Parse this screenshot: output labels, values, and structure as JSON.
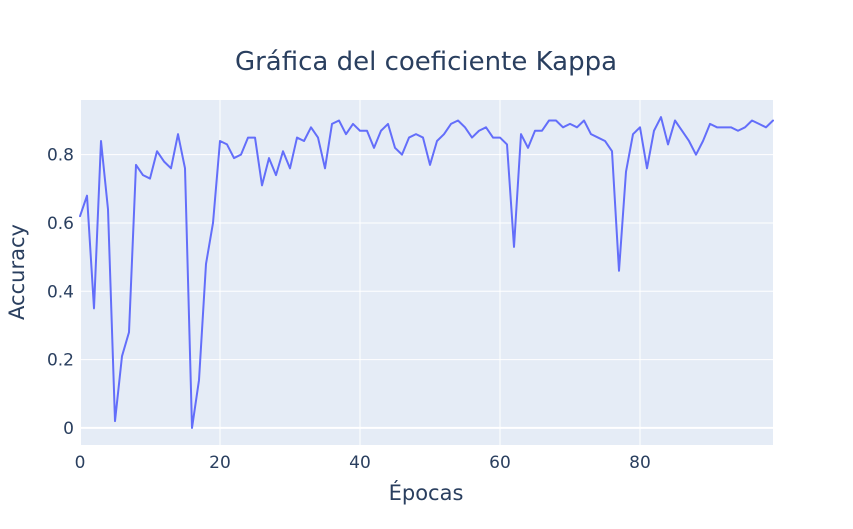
{
  "colors": {
    "plot_bg": "#e5ecf6",
    "grid": "#ffffff",
    "text": "#2a3f5f",
    "line": "#636efa"
  },
  "chart_data": {
    "type": "line",
    "title": "Gráfica del coeficiente Kappa",
    "xlabel": "Épocas",
    "ylabel": "Accuracy",
    "xlim": [
      0,
      99
    ],
    "ylim": [
      -0.05,
      0.96
    ],
    "xticks": [
      0,
      20,
      40,
      60,
      80
    ],
    "yticks": [
      0,
      0.2,
      0.4,
      0.6,
      0.8
    ],
    "xtick_labels": [
      "0",
      "20",
      "40",
      "60",
      "80"
    ],
    "ytick_labels": [
      "0",
      "0.2",
      "0.4",
      "0.6",
      "0.8"
    ],
    "grid": true,
    "legend": false,
    "series": [
      {
        "x": [
          0,
          1,
          2,
          3,
          4,
          5,
          6,
          7,
          8,
          9,
          10,
          11,
          12,
          13,
          14,
          15,
          16,
          17,
          18,
          19,
          20,
          21,
          22,
          23,
          24,
          25,
          26,
          27,
          28,
          29,
          30,
          31,
          32,
          33,
          34,
          35,
          36,
          37,
          38,
          39,
          40,
          41,
          42,
          43,
          44,
          45,
          46,
          47,
          48,
          49,
          50,
          51,
          52,
          53,
          54,
          55,
          56,
          57,
          58,
          59,
          60,
          61,
          62,
          63,
          64,
          65,
          66,
          67,
          68,
          69,
          70,
          71,
          72,
          73,
          74,
          75,
          76,
          77,
          78,
          79,
          80,
          81,
          82,
          83,
          84,
          85,
          86,
          87,
          88,
          89,
          90,
          91,
          92,
          93,
          94,
          95,
          96,
          97,
          98,
          99
        ],
        "values": [
          0.62,
          0.68,
          0.35,
          0.84,
          0.64,
          0.02,
          0.21,
          0.28,
          0.77,
          0.74,
          0.73,
          0.81,
          0.78,
          0.76,
          0.86,
          0.76,
          0.0,
          0.14,
          0.48,
          0.6,
          0.84,
          0.83,
          0.79,
          0.8,
          0.85,
          0.85,
          0.71,
          0.79,
          0.74,
          0.81,
          0.76,
          0.85,
          0.84,
          0.88,
          0.85,
          0.76,
          0.89,
          0.9,
          0.86,
          0.89,
          0.87,
          0.87,
          0.82,
          0.87,
          0.89,
          0.82,
          0.8,
          0.85,
          0.86,
          0.85,
          0.77,
          0.84,
          0.86,
          0.89,
          0.9,
          0.88,
          0.85,
          0.87,
          0.88,
          0.85,
          0.85,
          0.83,
          0.53,
          0.86,
          0.82,
          0.87,
          0.87,
          0.9,
          0.9,
          0.88,
          0.89,
          0.88,
          0.9,
          0.86,
          0.85,
          0.84,
          0.81,
          0.46,
          0.75,
          0.86,
          0.88,
          0.76,
          0.87,
          0.91,
          0.83,
          0.9,
          0.87,
          0.84,
          0.8,
          0.84,
          0.89,
          0.88,
          0.88,
          0.88,
          0.87,
          0.88,
          0.9,
          0.89,
          0.88,
          0.9
        ]
      }
    ]
  }
}
